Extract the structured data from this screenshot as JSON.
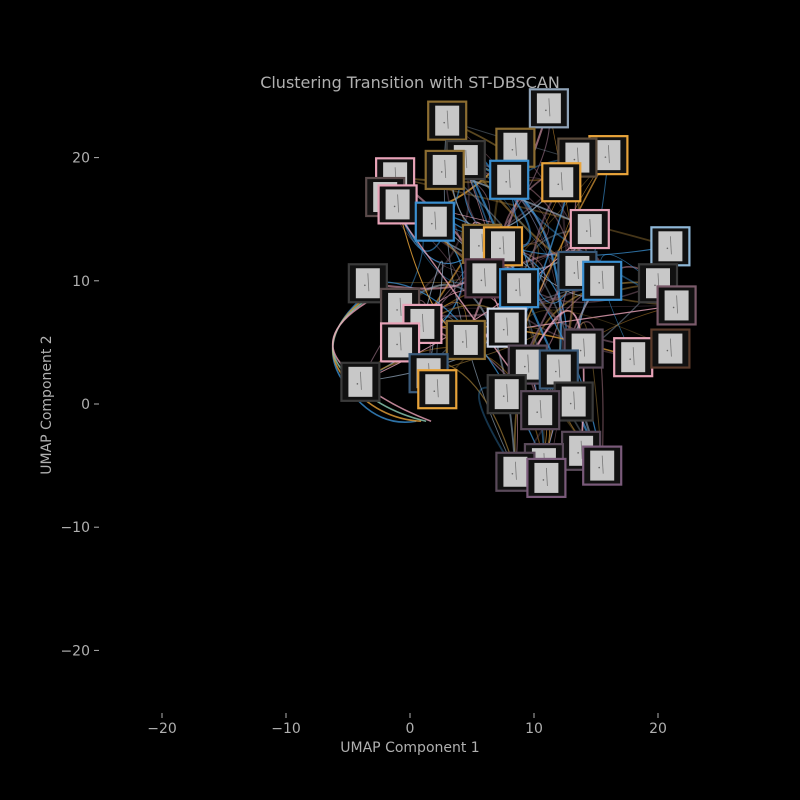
{
  "chart_data": {
    "type": "scatter",
    "title": "Clustering Transition with ST-DBSCAN",
    "xlabel": "UMAP Component 1",
    "ylabel": "UMAP Component 2",
    "xlim": [
      -25,
      25
    ],
    "ylim": [
      -25,
      25
    ],
    "xticks": [
      -20,
      -10,
      0,
      10,
      20
    ],
    "yticks": [
      -20,
      -10,
      0,
      10,
      20
    ],
    "xtick_labels": [
      "−20",
      "−10",
      "0",
      "10",
      "20"
    ],
    "ytick_labels": [
      "−20",
      "−10",
      "0",
      "10",
      "20"
    ],
    "grid": false,
    "background": "#000000",
    "text_color": "#b0b0b0",
    "thumbnail_fill": "#c8c8c8",
    "thumbnails": [
      {
        "x": 3.0,
        "y": 23.0,
        "color": "#8c6d31"
      },
      {
        "x": 11.2,
        "y": 24.0,
        "color": "#8fa3b8"
      },
      {
        "x": 8.5,
        "y": 20.8,
        "color": "#8c6d31"
      },
      {
        "x": 16.0,
        "y": 20.2,
        "color": "#e8a33a"
      },
      {
        "x": 13.5,
        "y": 20.0,
        "color": "#5a4a3a"
      },
      {
        "x": 4.5,
        "y": 19.8,
        "color": "#3a3a3a"
      },
      {
        "x": 2.8,
        "y": 19.0,
        "color": "#8c6d31"
      },
      {
        "x": -1.2,
        "y": 18.4,
        "color": "#e8a3b8"
      },
      {
        "x": 8.0,
        "y": 18.2,
        "color": "#3a8fd0"
      },
      {
        "x": 12.2,
        "y": 18.0,
        "color": "#e8a33a"
      },
      {
        "x": -2.0,
        "y": 16.8,
        "color": "#5a4a4a"
      },
      {
        "x": -1.0,
        "y": 16.2,
        "color": "#e8a3b8"
      },
      {
        "x": 2.0,
        "y": 14.8,
        "color": "#3a8fd0"
      },
      {
        "x": 14.5,
        "y": 14.2,
        "color": "#e8a3b8"
      },
      {
        "x": 21.0,
        "y": 12.8,
        "color": "#8fb8d8"
      },
      {
        "x": 5.8,
        "y": 13.0,
        "color": "#8c6d31"
      },
      {
        "x": 7.5,
        "y": 12.8,
        "color": "#e8a33a"
      },
      {
        "x": 13.5,
        "y": 10.8,
        "color": "#3a5a7a"
      },
      {
        "x": 15.5,
        "y": 10.0,
        "color": "#3a8fd0"
      },
      {
        "x": -3.4,
        "y": 9.8,
        "color": "#3a3a3a"
      },
      {
        "x": 20.0,
        "y": 9.8,
        "color": "#3a3a3a"
      },
      {
        "x": 6.0,
        "y": 10.2,
        "color": "#5a3a4a"
      },
      {
        "x": 8.8,
        "y": 9.4,
        "color": "#3a8fd0"
      },
      {
        "x": 21.5,
        "y": 8.0,
        "color": "#7a5a6a"
      },
      {
        "x": -0.8,
        "y": 7.8,
        "color": "#5a4a4a"
      },
      {
        "x": 1.0,
        "y": 6.5,
        "color": "#e8a3b8"
      },
      {
        "x": 7.8,
        "y": 6.2,
        "color": "#d0d8e8"
      },
      {
        "x": 4.5,
        "y": 5.2,
        "color": "#8c6d31"
      },
      {
        "x": 14.0,
        "y": 4.5,
        "color": "#5a4a5a"
      },
      {
        "x": 18.0,
        "y": 3.8,
        "color": "#e8a3b8"
      },
      {
        "x": 21.0,
        "y": 4.5,
        "color": "#5a3a2a"
      },
      {
        "x": -0.8,
        "y": 5.0,
        "color": "#e8a3b8"
      },
      {
        "x": 9.5,
        "y": 3.2,
        "color": "#5a4a5a"
      },
      {
        "x": 12.0,
        "y": 2.8,
        "color": "#3a5a7a"
      },
      {
        "x": 1.5,
        "y": 2.5,
        "color": "#3a5a7a"
      },
      {
        "x": -4.0,
        "y": 1.8,
        "color": "#3a3a3a"
      },
      {
        "x": 2.2,
        "y": 1.2,
        "color": "#e8a33a"
      },
      {
        "x": 7.8,
        "y": 0.8,
        "color": "#3a3a3a"
      },
      {
        "x": 13.2,
        "y": 0.2,
        "color": "#3a3a3a"
      },
      {
        "x": 10.5,
        "y": -0.5,
        "color": "#5a4a5a"
      },
      {
        "x": 13.8,
        "y": -3.8,
        "color": "#5a4a5a"
      },
      {
        "x": 10.8,
        "y": -4.8,
        "color": "#5a4a5a"
      },
      {
        "x": 15.5,
        "y": -5.0,
        "color": "#7a5a7a"
      },
      {
        "x": 8.5,
        "y": -5.5,
        "color": "#5a4a5a"
      },
      {
        "x": 11.0,
        "y": -6.0,
        "color": "#7a5a7a"
      }
    ],
    "trajectory_colors": [
      "#e8a33a",
      "#3a8fd0",
      "#e8a3b8",
      "#8fa3b8",
      "#7a5a6a",
      "#8c6d31"
    ]
  }
}
